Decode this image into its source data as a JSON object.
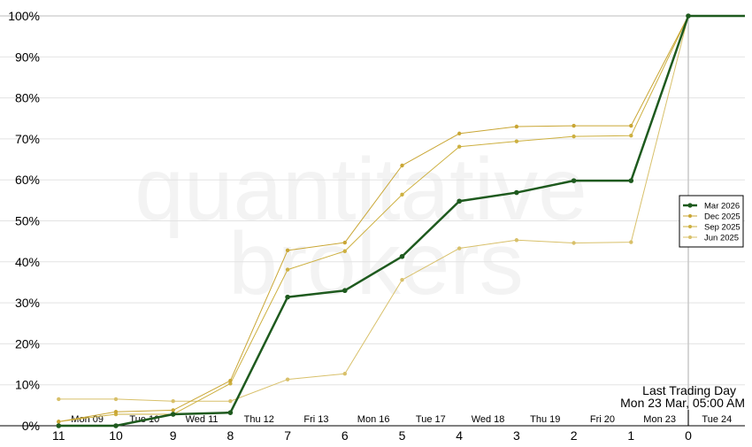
{
  "chart_data": {
    "type": "line",
    "title": "",
    "xlabel": "",
    "ylabel": "",
    "watermark": [
      "quantitative",
      "brokers"
    ],
    "x": [
      11,
      10,
      9,
      8,
      7,
      6,
      5,
      4,
      3,
      2,
      1,
      0
    ],
    "x_tick_labels": [
      "11",
      "10",
      "9",
      "8",
      "7",
      "6",
      "5",
      "4",
      "3",
      "2",
      "1",
      "0"
    ],
    "ylim": [
      0,
      100
    ],
    "y_ticks": [
      "0%",
      "10%",
      "20%",
      "30%",
      "40%",
      "50%",
      "60%",
      "70%",
      "80%",
      "90%",
      "100%"
    ],
    "grid": true,
    "date_labels": [
      "Mon 09",
      "Tue 10",
      "Wed 11",
      "Thu 12",
      "Fri 13",
      "Mon 16",
      "Tue 17",
      "Wed 18",
      "Thu 19",
      "Fri 20",
      "Mon 23",
      "Tue 24"
    ],
    "last_trading_day": {
      "label": "Last Trading Day",
      "value": "Mon 23 Mar, 05:00 AM"
    },
    "legend_position": "right",
    "series": [
      {
        "name": "Mar 2026",
        "color": "#1e5a1e",
        "emphasis": true,
        "values": [
          0,
          0,
          2.8,
          3.2,
          31.4,
          33.0,
          41.3,
          54.8,
          56.9,
          59.8,
          59.8,
          100
        ]
      },
      {
        "name": "Dec 2025",
        "color": "#c9a634",
        "emphasis": false,
        "values": [
          1.0,
          3.4,
          3.8,
          11.0,
          42.8,
          44.7,
          63.5,
          71.3,
          73.0,
          73.2,
          73.2,
          100
        ]
      },
      {
        "name": "Sep 2025",
        "color": "#cdb040",
        "emphasis": false,
        "values": [
          1.0,
          2.8,
          2.8,
          10.3,
          38.1,
          42.6,
          56.4,
          68.1,
          69.4,
          70.6,
          70.8,
          100
        ]
      },
      {
        "name": "Jun 2025",
        "color": "#d8c06a",
        "emphasis": false,
        "values": [
          6.5,
          6.5,
          6.0,
          6.0,
          11.3,
          12.7,
          35.6,
          43.3,
          45.3,
          44.6,
          44.8,
          100
        ]
      }
    ]
  }
}
